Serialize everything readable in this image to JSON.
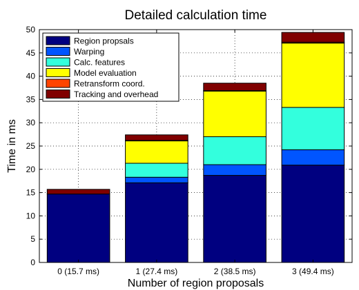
{
  "chart_data": {
    "type": "bar",
    "stacked": true,
    "title": "Detailed calculation time",
    "xlabel": "Number of region proposals",
    "ylabel": "Time in ms",
    "ylim": [
      0,
      50
    ],
    "yticks": [
      0,
      5,
      10,
      15,
      20,
      25,
      30,
      35,
      40,
      45,
      50
    ],
    "grid": true,
    "legend_position": "top-left",
    "categories": [
      "0 (15.7 ms)",
      "1 (27.4 ms)",
      "2 (38.5 ms)",
      "3 (49.4 ms)"
    ],
    "series": [
      {
        "name": "Region propsals",
        "color": "#000080",
        "values": [
          14.7,
          17.1,
          18.7,
          20.9
        ]
      },
      {
        "name": "Warping",
        "color": "#0055ff",
        "values": [
          0,
          1.2,
          2.3,
          3.3
        ]
      },
      {
        "name": "Calc. features",
        "color": "#33ffdd",
        "values": [
          0,
          3.0,
          6.0,
          9.1
        ]
      },
      {
        "name": "Model evaluation",
        "color": "#ffff00",
        "values": [
          0,
          4.8,
          9.8,
          13.8
        ]
      },
      {
        "name": "Retransform coord.",
        "color": "#ff4400",
        "values": [
          0,
          0.1,
          0.1,
          0.2
        ]
      },
      {
        "name": "Tracking and overhead",
        "color": "#800000",
        "values": [
          1.0,
          1.2,
          1.6,
          2.1
        ]
      }
    ]
  }
}
